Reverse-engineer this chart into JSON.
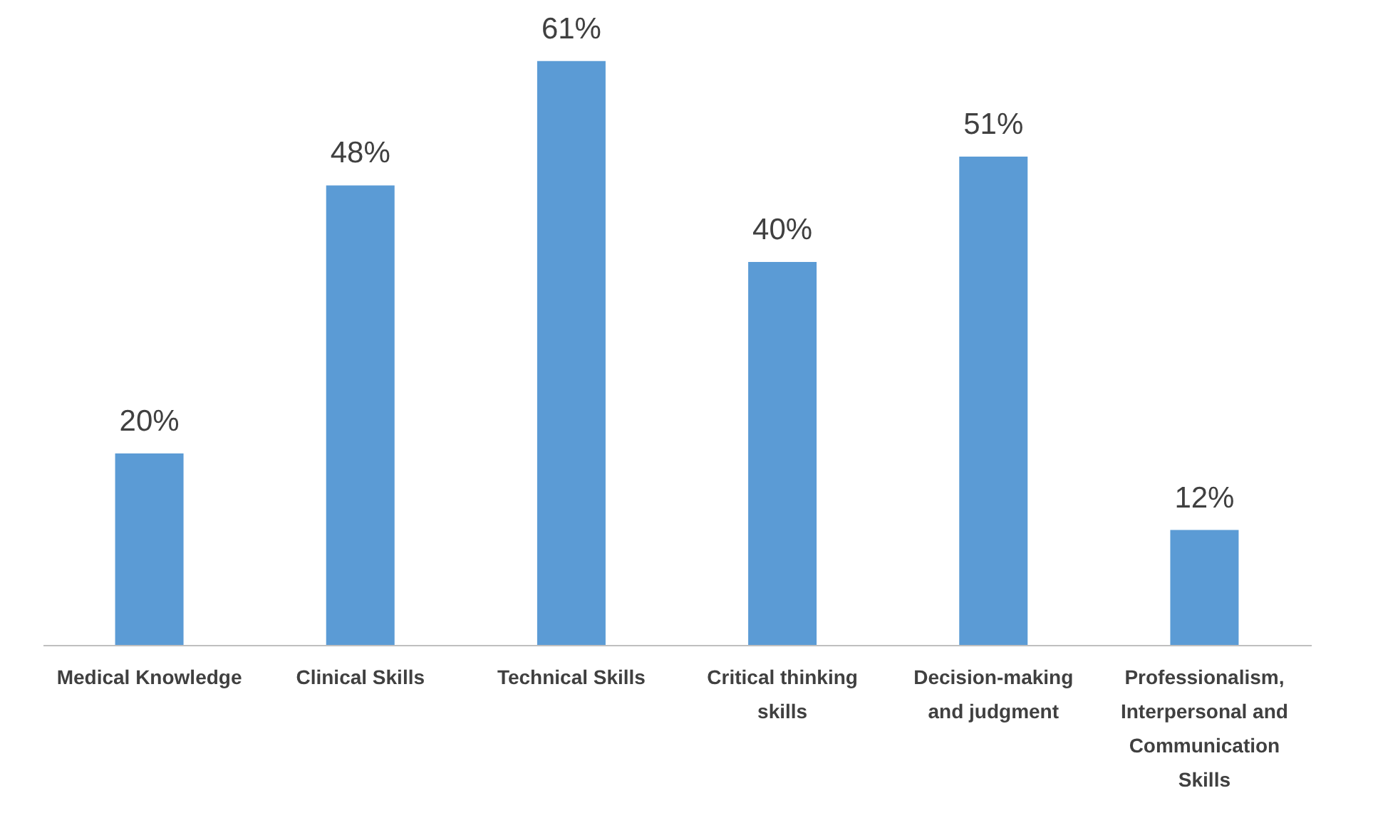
{
  "chart_data": {
    "type": "bar",
    "categories": [
      "Medical Knowledge",
      "Clinical Skills",
      "Technical Skills",
      "Critical thinking skills",
      "Decision-making and judgment",
      "Professionalism, Interpersonal and Communication Skills"
    ],
    "values": [
      20,
      48,
      61,
      40,
      51,
      12
    ],
    "value_labels": [
      "20%",
      "48%",
      "61%",
      "40%",
      "51%",
      "12%"
    ],
    "color": "#5b9bd5"
  }
}
